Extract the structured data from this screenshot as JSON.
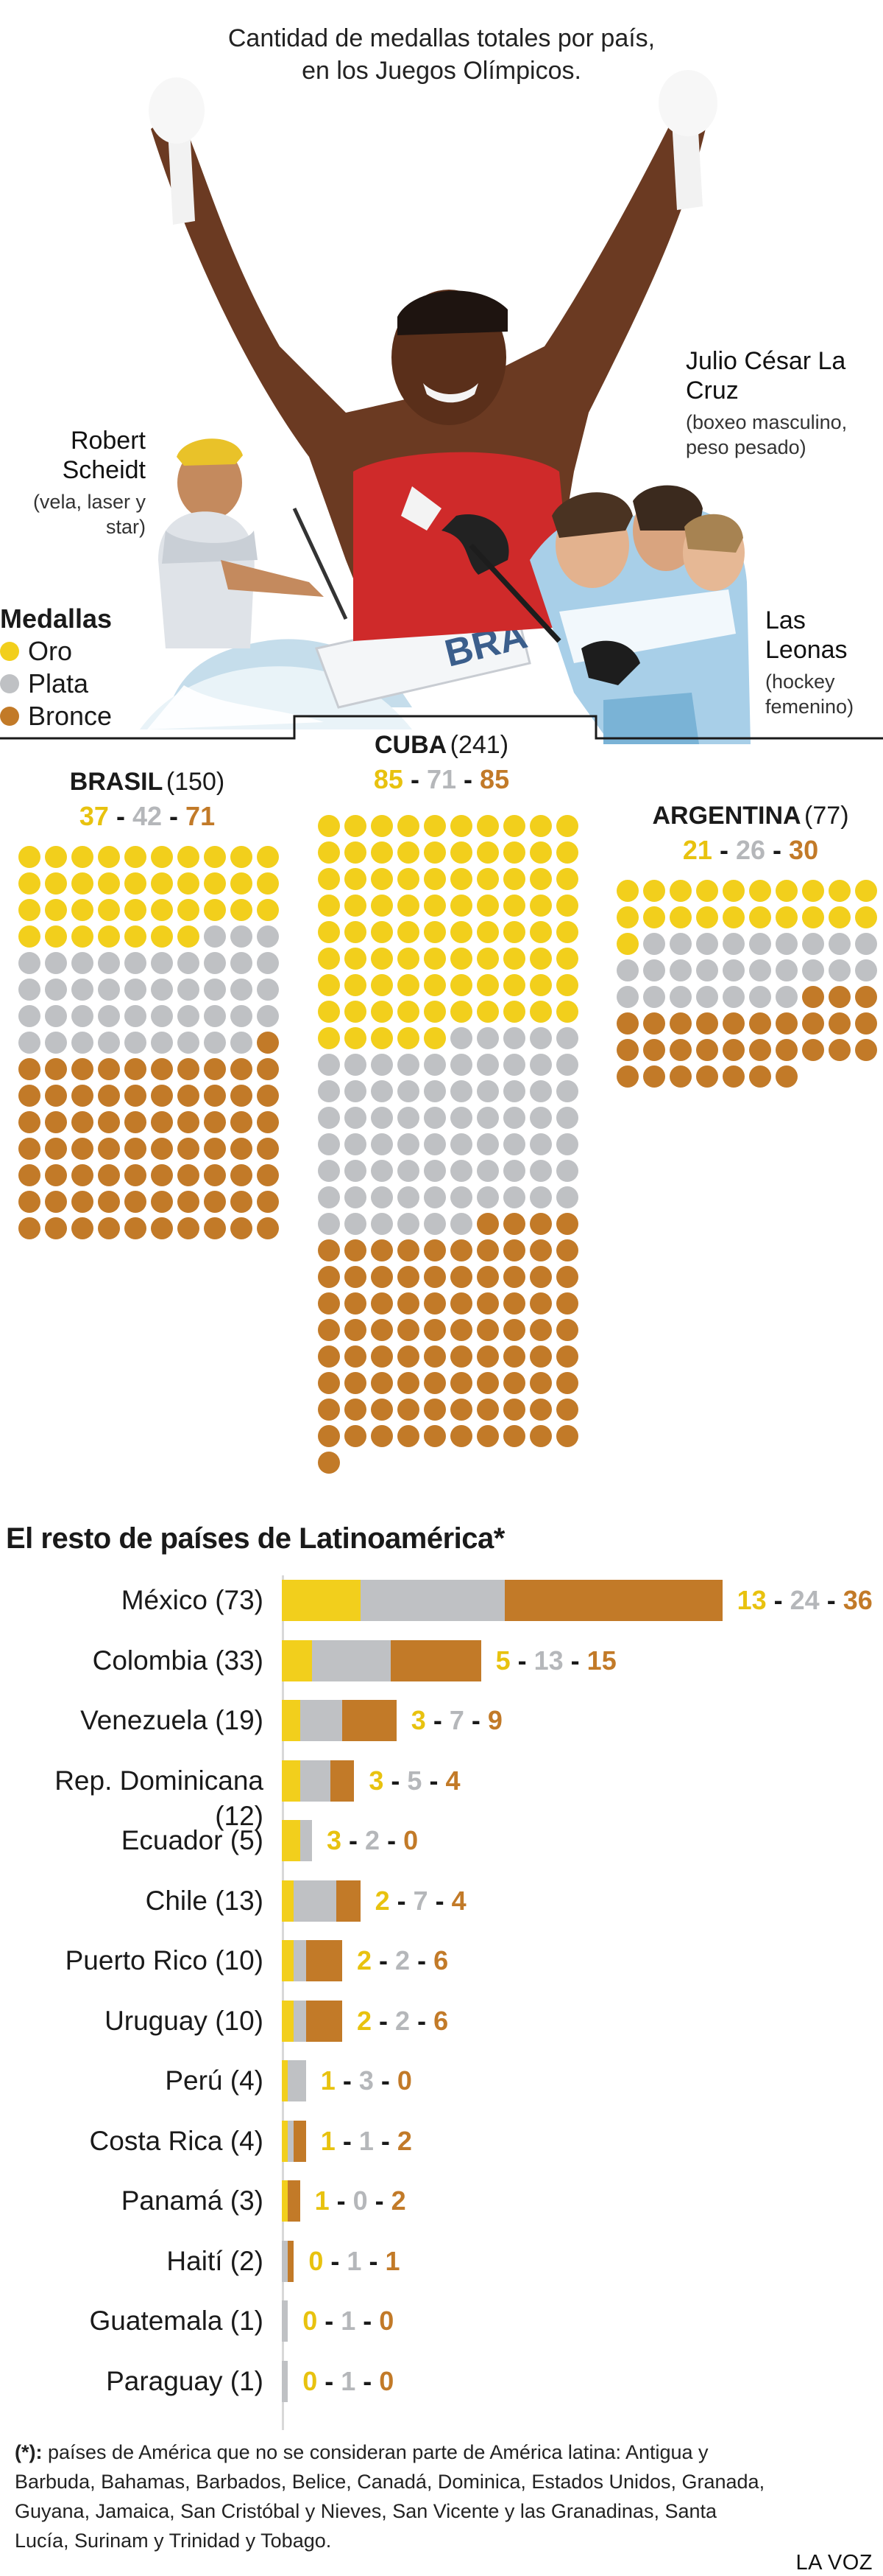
{
  "title": "Cantidad de medallas totales por país, en los Juegos Olímpicos.",
  "captions": {
    "lacruz": {
      "name": "Julio César La Cruz",
      "sub": "(boxeo masculino, peso pesado)"
    },
    "scheidt": {
      "name": "Robert Scheidt",
      "sub": "(vela, laser y star)"
    },
    "leonas": {
      "name": "Las Leonas",
      "sub": "(hockey femenino)"
    }
  },
  "photo_text": "BRA",
  "legend": {
    "title": "Medallas",
    "items": [
      {
        "label": "Oro",
        "color": "#f2cf1c"
      },
      {
        "label": "Plata",
        "color": "#bfc1c4"
      },
      {
        "label": "Bronce",
        "color": "#c27a28"
      }
    ]
  },
  "colors": {
    "gold": "#f2cf1c",
    "silver": "#bfc1c4",
    "bronze": "#c27a28",
    "gold_text": "#e8c20f",
    "silver_text": "#b5b7ba",
    "bronze_text": "#c27a28"
  },
  "chart_data": [
    {
      "type": "waffle",
      "title": "",
      "countries": [
        {
          "name": "BRASIL",
          "total": "(150)",
          "gold": 37,
          "silver": 42,
          "bronze": 71
        },
        {
          "name": "CUBA",
          "total": "(241)",
          "gold": 85,
          "silver": 71,
          "bronze": 85
        },
        {
          "name": "ARGENTINA",
          "total": "(77)",
          "gold": 21,
          "silver": 26,
          "bronze": 30
        }
      ]
    },
    {
      "type": "bar",
      "stacked": true,
      "title": "El resto de países de Latinoamérica*",
      "series": [
        {
          "name": "Oro",
          "color": "#f2cf1c"
        },
        {
          "name": "Plata",
          "color": "#bfc1c4"
        },
        {
          "name": "Bronce",
          "color": "#c27a28"
        }
      ],
      "rows": [
        {
          "label": "México (73)",
          "gold": 13,
          "silver": 24,
          "bronze": 36
        },
        {
          "label": "Colombia (33)",
          "gold": 5,
          "silver": 13,
          "bronze": 15
        },
        {
          "label": "Venezuela (19)",
          "gold": 3,
          "silver": 7,
          "bronze": 9
        },
        {
          "label": "Rep. Dominicana (12)",
          "gold": 3,
          "silver": 5,
          "bronze": 4
        },
        {
          "label": "Ecuador (5)",
          "gold": 3,
          "silver": 2,
          "bronze": 0
        },
        {
          "label": "Chile (13)",
          "gold": 2,
          "silver": 7,
          "bronze": 4
        },
        {
          "label": "Puerto Rico (10)",
          "gold": 2,
          "silver": 2,
          "bronze": 6
        },
        {
          "label": "Uruguay (10)",
          "gold": 2,
          "silver": 2,
          "bronze": 6
        },
        {
          "label": "Perú (4)",
          "gold": 1,
          "silver": 3,
          "bronze": 0
        },
        {
          "label": "Costa Rica (4)",
          "gold": 1,
          "silver": 1,
          "bronze": 2
        },
        {
          "label": "Panamá (3)",
          "gold": 1,
          "silver": 0,
          "bronze": 2
        },
        {
          "label": "Haití (2)",
          "gold": 0,
          "silver": 1,
          "bronze": 1
        },
        {
          "label": "Guatemala (1)",
          "gold": 0,
          "silver": 1,
          "bronze": 0
        },
        {
          "label": "Paraguay (1)",
          "gold": 0,
          "silver": 1,
          "bronze": 0
        }
      ]
    }
  ],
  "footnote": {
    "mark": "(*):",
    "text": "países de América que no se consideran parte de América latina: Antigua y Barbuda, Bahamas, Barbados, Belice, Canadá, Dominica, Estados Unidos, Granada, Guyana, Jamaica, San Cristóbal y Nieves, San Vicente y las Granadinas, Santa Lucía, Surinam y Trinidad y Tobago."
  },
  "brand": "LA VOZ",
  "dash": "-"
}
